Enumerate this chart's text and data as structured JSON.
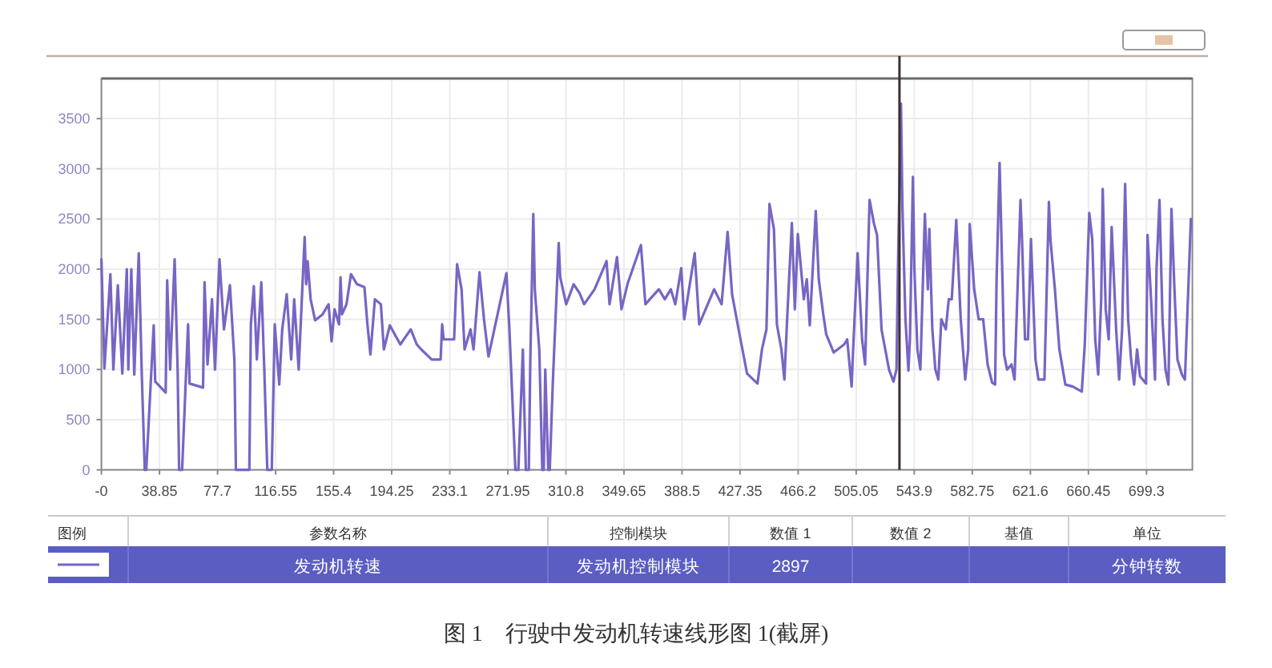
{
  "chart_data": {
    "type": "line",
    "x": [
      0,
      2,
      6,
      8,
      11,
      14,
      17,
      18,
      20,
      22,
      25,
      27,
      29,
      30,
      35,
      36,
      43,
      44,
      46,
      49,
      51,
      52,
      54,
      58,
      59,
      68,
      69,
      71,
      74,
      76,
      79,
      82,
      86,
      89,
      90,
      99,
      100,
      102,
      104,
      107,
      109,
      111,
      114,
      116,
      119,
      121,
      124,
      127,
      129,
      132,
      136,
      137,
      138,
      140,
      143,
      148,
      152,
      154,
      156,
      159,
      160,
      161,
      164,
      167,
      171,
      176,
      178,
      180,
      183,
      187,
      189,
      193,
      200,
      207,
      211,
      214,
      221,
      227,
      228,
      229,
      236,
      238,
      241,
      243,
      247,
      249,
      253,
      256,
      259,
      271,
      273,
      277,
      279,
      282,
      284,
      286,
      287,
      289,
      290,
      293,
      295,
      296,
      297,
      299,
      300,
      302,
      306,
      307,
      311,
      316,
      320,
      323,
      330,
      338,
      340,
      345,
      348,
      352,
      361,
      364,
      373,
      377,
      381,
      384,
      388,
      390,
      397,
      400,
      410,
      415,
      419,
      422,
      427,
      432,
      439,
      442,
      445,
      447,
      450,
      452,
      455,
      457,
      459,
      462,
      464,
      466,
      470,
      472,
      474,
      478,
      480,
      483,
      485,
      490,
      497,
      499,
      502,
      503,
      506,
      509,
      511,
      514,
      517,
      519,
      522,
      527,
      530,
      532,
      533,
      535,
      536,
      538,
      540,
      541,
      543,
      544,
      546,
      548,
      551,
      553,
      554,
      556,
      558,
      560,
      562,
      565,
      567,
      569,
      572,
      575,
      578,
      580,
      581,
      584,
      587,
      590,
      593,
      596,
      598,
      599,
      601,
      603,
      604,
      606,
      609,
      611,
      615,
      616,
      618,
      620,
      622,
      625,
      627,
      631,
      634,
      635,
      638,
      641,
      645,
      650,
      656,
      658,
      661,
      663,
      665,
      667,
      669,
      670,
      672,
      674,
      676,
      679,
      681,
      683,
      685,
      687,
      689,
      691,
      693,
      695,
      699,
      700,
      702,
      704,
      705,
      706,
      708,
      710,
      712,
      714,
      716,
      718,
      720,
      723,
      725,
      729
    ],
    "series": [
      {
        "name": "发动机转速",
        "color": "#7865c4",
        "values": [
          2100,
          1010,
          1950,
          1000,
          1840,
          960,
          2000,
          1000,
          2000,
          950,
          2160,
          960,
          0,
          0,
          1440,
          880,
          770,
          1890,
          1000,
          2100,
          1000,
          0,
          0,
          1450,
          860,
          820,
          1870,
          1050,
          1700,
          1000,
          2100,
          1400,
          1840,
          1090,
          0,
          0,
          1450,
          1830,
          1100,
          1870,
          1000,
          0,
          0,
          1450,
          850,
          1400,
          1750,
          1100,
          1700,
          1000,
          2320,
          1850,
          2080,
          1700,
          1490,
          1550,
          1650,
          1280,
          1600,
          1450,
          1920,
          1550,
          1650,
          1950,
          1850,
          1820,
          1450,
          1150,
          1700,
          1650,
          1200,
          1440,
          1250,
          1400,
          1250,
          1200,
          1100,
          1100,
          1450,
          1300,
          1300,
          2050,
          1800,
          1200,
          1400,
          1200,
          1970,
          1500,
          1130,
          1960,
          1400,
          0,
          0,
          1200,
          0,
          0,
          1100,
          2550,
          1800,
          1200,
          0,
          0,
          1000,
          0,
          0,
          850,
          2260,
          1920,
          1650,
          1850,
          1760,
          1650,
          1800,
          2080,
          1650,
          2120,
          1600,
          1850,
          2240,
          1650,
          1800,
          1700,
          1800,
          1650,
          2010,
          1500,
          2160,
          1450,
          1800,
          1650,
          2370,
          1750,
          1350,
          960,
          860,
          1200,
          1400,
          2650,
          2400,
          1450,
          1200,
          900,
          1550,
          2460,
          1600,
          2350,
          1700,
          1900,
          1440,
          2580,
          1900,
          1550,
          1350,
          1170,
          1250,
          1300,
          830,
          1200,
          2160,
          1300,
          1050,
          2690,
          2450,
          2340,
          1400,
          1000,
          880,
          1000,
          2000,
          3650,
          2600,
          1500,
          990,
          1300,
          2920,
          2000,
          1200,
          1000,
          2550,
          1800,
          2400,
          1400,
          1000,
          900,
          1500,
          1400,
          1700,
          1700,
          2490,
          1500,
          900,
          1200,
          2450,
          1800,
          1500,
          1500,
          1050,
          870,
          850,
          1900,
          3060,
          1850,
          1150,
          1000,
          1050,
          900,
          2690,
          2300,
          1300,
          1300,
          2300,
          1100,
          900,
          900,
          2670,
          2300,
          1800,
          1200,
          850,
          830,
          780,
          1250,
          2560,
          2300,
          1300,
          950,
          1700,
          2800,
          1600,
          1300,
          2420,
          1400,
          900,
          1400,
          2850,
          1500,
          1100,
          850,
          1200,
          930,
          860,
          2340,
          1800,
          1200,
          900,
          2000,
          2690,
          1500,
          1000,
          850,
          2600,
          1800,
          1100,
          950,
          900,
          2500
        ]
      }
    ],
    "xlim": [
      0,
      730
    ],
    "xticks": [
      {
        "value": 0,
        "label": "-0"
      },
      38.85,
      77.7,
      116.55,
      155.4,
      194.25,
      233.1,
      271.95,
      310.8,
      349.65,
      388.5,
      427.35,
      466.2,
      505.05,
      543.9,
      582.75,
      621.6,
      660.45,
      699.3
    ],
    "ylim": [
      0,
      3900
    ],
    "yticks": [
      0,
      500,
      1000,
      1500,
      2000,
      2500,
      3000,
      3500
    ],
    "grid": true,
    "legend": "bottom",
    "ref_lines": [
      {
        "axis": "x",
        "value": 534,
        "color": "#3b3030"
      }
    ],
    "annotations": [
      "图例",
      "参数名称",
      "控制模块",
      "数值 1",
      "数值 2",
      "基值",
      "单位",
      "发动机控制模块",
      "2897",
      "分钟转数",
      "图 1　行驶中发动机转速线形图 1(截屏)"
    ]
  }
}
